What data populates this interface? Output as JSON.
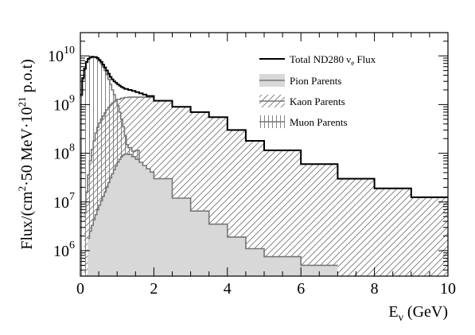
{
  "chart_data": {
    "type": "area",
    "style": "step-histogram",
    "x_unit": "GeV",
    "xlim": [
      0,
      10
    ],
    "ylim": [
      300000.0,
      30000000000.0
    ],
    "y_scale": "log",
    "x_ticks": [
      "0",
      "2",
      "4",
      "6",
      "8",
      "10"
    ],
    "y_ticks": [
      {
        "base": "10",
        "exp": "6",
        "value": 1000000.0
      },
      {
        "base": "10",
        "exp": "7",
        "value": 10000000.0
      },
      {
        "base": "10",
        "exp": "8",
        "value": 100000000.0
      },
      {
        "base": "10",
        "exp": "9",
        "value": 1000000000.0
      },
      {
        "base": "10",
        "exp": "10",
        "value": 10000000000.0
      }
    ],
    "xlabel": {
      "main": "E",
      "sub": "ν",
      "rest": " (GeV)"
    },
    "ylabel": {
      "pre": "Flux/(cm",
      "sup1": "2",
      "mid": "·50 MeV·10",
      "sup2": "21",
      "post": " p.o.t)"
    },
    "legend_position": "top-right",
    "series": [
      {
        "name": "Total ND280 νe Flux",
        "legend": {
          "pre": "Total ND280 ν",
          "sub": "e",
          "post": " Flux"
        },
        "style": "line",
        "color": "#000000",
        "edges": [
          0,
          0.05,
          0.1,
          0.15,
          0.2,
          0.25,
          0.3,
          0.35,
          0.4,
          0.45,
          0.5,
          0.55,
          0.6,
          0.65,
          0.7,
          0.75,
          0.8,
          0.85,
          0.9,
          0.95,
          1.0,
          1.05,
          1.1,
          1.15,
          1.2,
          1.3,
          1.4,
          1.5,
          1.6,
          1.7,
          1.8,
          2.0,
          2.5,
          3.0,
          3.5,
          4.0,
          4.5,
          5.0,
          6.0,
          7.0,
          8.0,
          9.0,
          10.0
        ],
        "values": [
          1600000000.0,
          3500000000.0,
          5500000000.0,
          7500000000.0,
          8700000000.0,
          9300000000.0,
          9600000000.0,
          9500000000.0,
          9500000000.0,
          9000000000.0,
          8300000000.0,
          7500000000.0,
          6600000000.0,
          5800000000.0,
          5000000000.0,
          4300000000.0,
          3700000000.0,
          3300000000.0,
          3000000000.0,
          2800000000.0,
          2600000000.0,
          2450000000.0,
          2300000000.0,
          2200000000.0,
          2100000000.0,
          2000000000.0,
          1900000000.0,
          1800000000.0,
          1700000000.0,
          1600000000.0,
          1500000000.0,
          1200000000.0,
          900000000.0,
          700000000.0,
          550000000.0,
          300000000.0,
          180000000.0,
          115000000.0,
          60000000.0,
          30000000.0,
          19000000.0,
          12500000.0
        ]
      },
      {
        "name": "Pion Parents",
        "style": "filled-gray",
        "color": "#777777",
        "fill": "#d8d8d8",
        "edges": [
          0.2,
          0.25,
          0.3,
          0.35,
          0.4,
          0.45,
          0.5,
          0.55,
          0.6,
          0.65,
          0.7,
          0.75,
          0.8,
          0.85,
          0.9,
          0.95,
          1.0,
          1.05,
          1.1,
          1.15,
          1.2,
          1.3,
          1.4,
          1.5,
          1.6,
          1.7,
          1.8,
          1.9,
          2.0,
          2.5,
          3.0,
          3.5,
          4.0,
          4.5,
          5.0,
          6.0,
          7.0
        ],
        "values": [
          1800000.0,
          2500000.0,
          3300000.0,
          4300000.0,
          5500000.0,
          6900000.0,
          8500000.0,
          10500000.0,
          13000000.0,
          16000000.0,
          20000000.0,
          25000000.0,
          31000000.0,
          38000000.0,
          46000000.0,
          55000000.0,
          65000000.0,
          75000000.0,
          85000000.0,
          92000000.0,
          96000000.0,
          94000000.0,
          85000000.0,
          75000000.0,
          65000000.0,
          56000000.0,
          48000000.0,
          41000000.0,
          30000000.0,
          12000000.0,
          6500000.0,
          3500000.0,
          1900000.0,
          1100000.0,
          750000.0,
          500000.0
        ]
      },
      {
        "name": "Kaon Parents",
        "style": "hatched",
        "color": "#777777",
        "edges": [
          0.1,
          0.15,
          0.2,
          0.25,
          0.3,
          0.35,
          0.4,
          0.45,
          0.5,
          0.55,
          0.6,
          0.65,
          0.7,
          0.75,
          0.8,
          0.85,
          0.9,
          0.95,
          1.0,
          1.1,
          1.2,
          1.3,
          1.4,
          1.5,
          1.6,
          1.7,
          1.8,
          2.0,
          2.5,
          3.0,
          3.5,
          4.0,
          4.5,
          5.0,
          6.0,
          7.0,
          8.0,
          9.0,
          10.0
        ],
        "values": [
          6000000.0,
          16000000.0,
          36000000.0,
          70000000.0,
          120000000.0,
          180000000.0,
          260000000.0,
          340000000.0,
          420000000.0,
          500000000.0,
          580000000.0,
          680000000.0,
          780000000.0,
          880000000.0,
          980000000.0,
          1070000000.0,
          1150000000.0,
          1220000000.0,
          1280000000.0,
          1350000000.0,
          1400000000.0,
          1420000000.0,
          1420000000.0,
          1420000000.0,
          1420000000.0,
          1420000000.0,
          1410000000.0,
          1200000000.0,
          900000000.0,
          700000000.0,
          550000000.0,
          300000000.0,
          180000000.0,
          115000000.0,
          60000000.0,
          30000000.0,
          19000000.0,
          12500000.0
        ]
      },
      {
        "name": "Muon Parents",
        "style": "vertical-lines",
        "color": "#777777",
        "edges": [
          0,
          0.05,
          0.1,
          0.15,
          0.2,
          0.25,
          0.3,
          0.35,
          0.4,
          0.45,
          0.5,
          0.55,
          0.6,
          0.65,
          0.7,
          0.75,
          0.8,
          0.85,
          0.9,
          0.95,
          1.0,
          1.05,
          1.1,
          1.15,
          1.2,
          1.25,
          1.3,
          1.4,
          1.5,
          1.6,
          1.7,
          1.8,
          2.0,
          2.5,
          3.0,
          3.5,
          4.0,
          4.5,
          5.0,
          6.0
        ],
        "values": [
          1500000000.0,
          3300000000.0,
          5300000000.0,
          7300000000.0,
          8500000000.0,
          9100000000.0,
          9400000000.0,
          9300000000.0,
          9200000000.0,
          8600000000.0,
          7800000000.0,
          6900000000.0,
          5900000000.0,
          5000000000.0,
          4100000000.0,
          3300000000.0,
          2600000000.0,
          2000000000.0,
          1600000000.0,
          1250000000.0,
          950000000.0,
          700000000.0,
          500000000.0,
          350000000.0,
          230000000.0,
          150000000.0,
          130000000.0,
          110000000.0,
          115000000.0,
          40000000.0,
          30000000.0,
          25000000.0,
          15000000.0,
          8000000.0,
          4500000.0,
          2500000.0,
          1500000.0,
          900000.0,
          500000.0
        ]
      }
    ]
  }
}
